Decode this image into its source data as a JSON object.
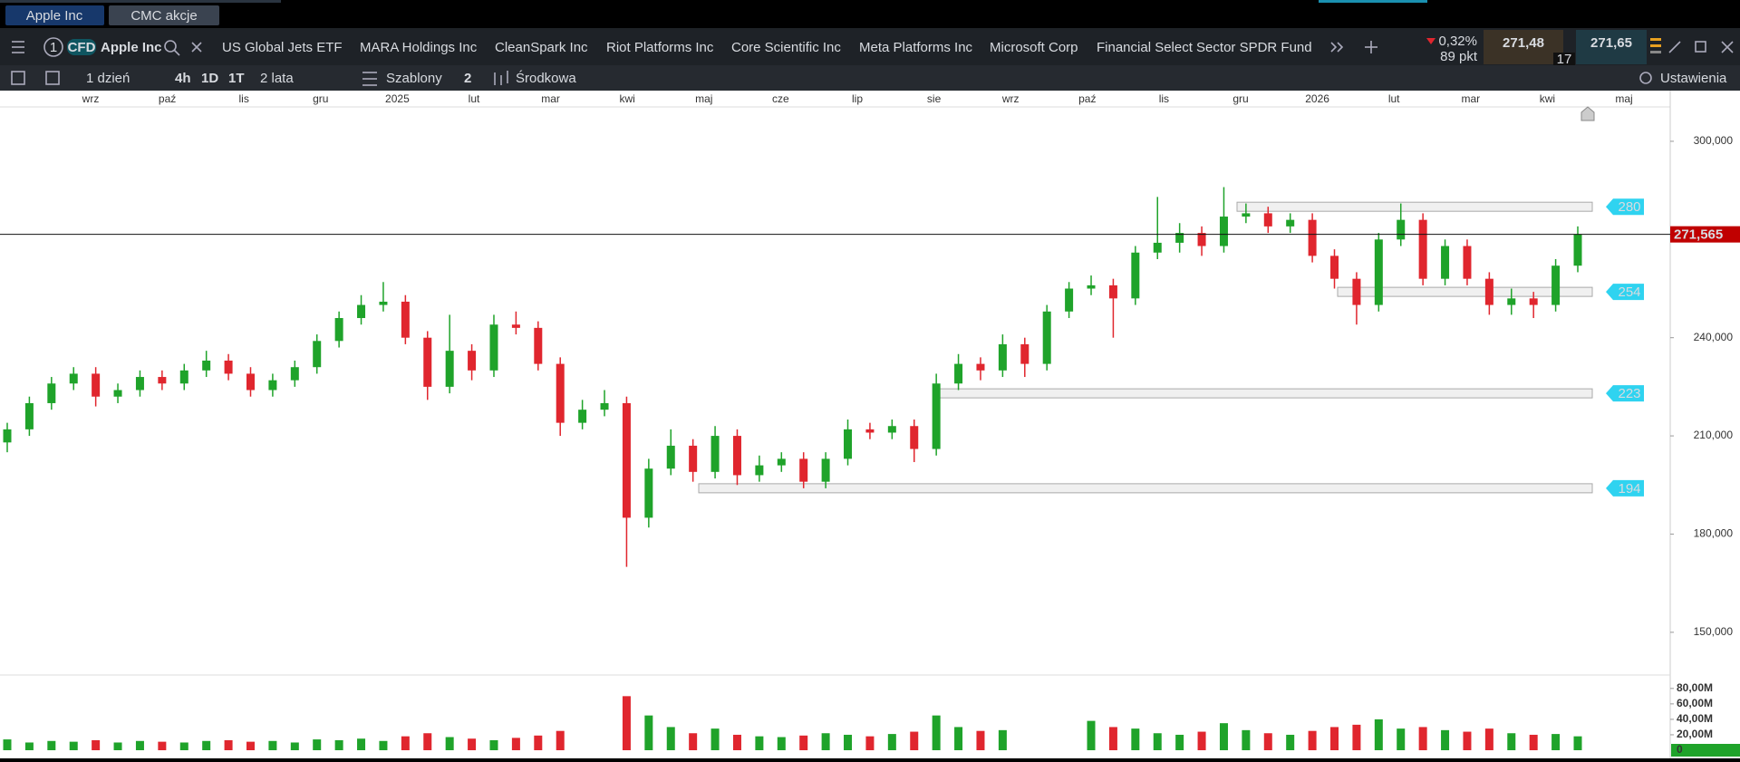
{
  "tabs": [
    "Apple Inc",
    "CMC akcje"
  ],
  "instrument": {
    "number": "1",
    "badge": "CFD",
    "name": "Apple Inc"
  },
  "watchlist": [
    "US Global Jets ETF",
    "MARA Holdings Inc",
    "CleanSpark Inc",
    "Riot Platforms Inc",
    "Core Scientific Inc",
    "Meta Platforms Inc",
    "Microsoft Corp",
    "Financial Select Sector SPDR Fund"
  ],
  "quote": {
    "change": "0,32%",
    "points": "89 pkt",
    "sell": "271,48",
    "buy": "271,65",
    "spread": "17"
  },
  "toolbar": {
    "interval": "1 dzień",
    "quick": [
      "4h",
      "1D",
      "1T"
    ],
    "range": "2 lata",
    "templates": "Szablony",
    "templates_count": "2",
    "chart_type": "Środkowa",
    "settings": "Ustawienia"
  },
  "chart_data": {
    "type": "candlestick",
    "months": [
      "wrz",
      "paź",
      "lis",
      "gru",
      "2025",
      "lut",
      "mar",
      "kwi",
      "maj",
      "cze",
      "lip",
      "sie",
      "wrz",
      "paź",
      "lis",
      "gru",
      "2026",
      "lut",
      "mar",
      "kwi",
      "maj"
    ],
    "ohlc": [
      [
        208,
        214,
        205,
        212
      ],
      [
        212,
        222,
        210,
        220
      ],
      [
        220,
        228,
        218,
        226
      ],
      [
        226,
        231,
        224,
        229
      ],
      [
        229,
        231,
        219,
        222
      ],
      [
        222,
        226,
        220,
        224
      ],
      [
        224,
        230,
        222,
        228
      ],
      [
        228,
        230,
        224,
        226
      ],
      [
        226,
        232,
        224,
        230
      ],
      [
        230,
        236,
        228,
        233
      ],
      [
        233,
        235,
        227,
        229
      ],
      [
        229,
        231,
        222,
        224
      ],
      [
        224,
        229,
        222,
        227
      ],
      [
        227,
        233,
        225,
        231
      ],
      [
        231,
        241,
        229,
        239
      ],
      [
        239,
        248,
        237,
        246
      ],
      [
        246,
        253,
        244,
        250
      ],
      [
        250,
        257,
        248,
        251
      ],
      [
        251,
        253,
        238,
        240
      ],
      [
        240,
        242,
        221,
        225
      ],
      [
        225,
        247,
        223,
        236
      ],
      [
        236,
        238,
        227,
        230
      ],
      [
        230,
        247,
        228,
        244
      ],
      [
        244,
        248,
        241,
        243
      ],
      [
        243,
        245,
        230,
        232
      ],
      [
        232,
        234,
        210,
        214
      ],
      [
        214,
        221,
        212,
        218
      ],
      [
        218,
        224,
        216,
        220
      ],
      [
        220,
        222,
        170,
        185
      ],
      [
        185,
        203,
        182,
        200
      ],
      [
        200,
        212,
        198,
        207
      ],
      [
        207,
        209,
        196,
        199
      ],
      [
        199,
        213,
        197,
        210
      ],
      [
        210,
        212,
        195,
        198
      ],
      [
        198,
        204,
        196,
        201
      ],
      [
        201,
        205,
        199,
        203
      ],
      [
        203,
        205,
        194,
        196
      ],
      [
        196,
        205,
        194,
        203
      ],
      [
        203,
        215,
        201,
        212
      ],
      [
        212,
        214,
        209,
        211
      ],
      [
        211,
        215,
        209,
        213
      ],
      [
        213,
        215,
        202,
        206
      ],
      [
        206,
        229,
        204,
        226
      ],
      [
        226,
        235,
        224,
        232
      ],
      [
        232,
        234,
        227,
        230
      ],
      [
        230,
        241,
        228,
        238
      ],
      [
        238,
        240,
        228,
        232
      ],
      [
        232,
        250,
        230,
        248
      ],
      [
        248,
        257,
        246,
        255
      ],
      [
        255,
        259,
        253,
        256
      ],
      [
        256,
        258,
        240,
        252
      ],
      [
        252,
        268,
        250,
        266
      ],
      [
        266,
        283,
        264,
        269
      ],
      [
        269,
        275,
        266,
        272
      ],
      [
        272,
        274,
        265,
        268
      ],
      [
        268,
        286,
        266,
        277
      ],
      [
        277,
        281,
        275,
        278
      ],
      [
        278,
        280,
        272,
        274
      ],
      [
        274,
        278,
        272,
        276
      ],
      [
        276,
        278,
        263,
        265
      ],
      [
        265,
        267,
        255,
        258
      ],
      [
        258,
        260,
        244,
        250
      ],
      [
        250,
        272,
        248,
        270
      ],
      [
        270,
        281,
        268,
        276
      ],
      [
        276,
        278,
        256,
        258
      ],
      [
        258,
        270,
        256,
        268
      ],
      [
        268,
        270,
        256,
        258
      ],
      [
        258,
        260,
        247,
        250
      ],
      [
        250,
        255,
        247,
        252
      ],
      [
        252,
        254,
        246,
        250
      ],
      [
        250,
        264,
        248,
        262
      ],
      [
        262,
        274,
        260,
        271.5
      ]
    ],
    "up_color": "#1fa32a",
    "down_color": "#e0262e",
    "ylim": [
      137.5,
      310.5
    ],
    "yticks": [
      {
        "value": 150,
        "label": "150,000"
      },
      {
        "value": 180,
        "label": "180,000"
      },
      {
        "value": 210,
        "label": "210,000"
      },
      {
        "value": 240,
        "label": "240,000"
      },
      {
        "value": 300,
        "label": "300,000"
      }
    ],
    "levels": [
      280,
      254,
      223,
      194
    ],
    "level_color": "#2fd3f0",
    "last_price": {
      "value": 271.565,
      "label": "271,565"
    },
    "volume": {
      "values": [
        14,
        10,
        12,
        11,
        13,
        10,
        12,
        11,
        10,
        12,
        13,
        11,
        12,
        10,
        14,
        13,
        15,
        12,
        18,
        22,
        17,
        15,
        13,
        16,
        19,
        25,
        null,
        null,
        70,
        45,
        30,
        22,
        28,
        20,
        18,
        17,
        19,
        22,
        20,
        18,
        21,
        24,
        45,
        30,
        25,
        26,
        null,
        null,
        null,
        38,
        30,
        28,
        22,
        20,
        24,
        35,
        26,
        22,
        20,
        25,
        30,
        33,
        40,
        28,
        30,
        26,
        24,
        28,
        22,
        20,
        21,
        18
      ],
      "ylim": [
        0,
        88
      ],
      "yticks": [
        {
          "value": 0,
          "label": "0"
        },
        {
          "value": 20,
          "label": "20,00M"
        },
        {
          "value": 40,
          "label": "40,00M"
        },
        {
          "value": 60,
          "label": "60,00M"
        },
        {
          "value": 80,
          "label": "80,00M"
        }
      ]
    }
  }
}
